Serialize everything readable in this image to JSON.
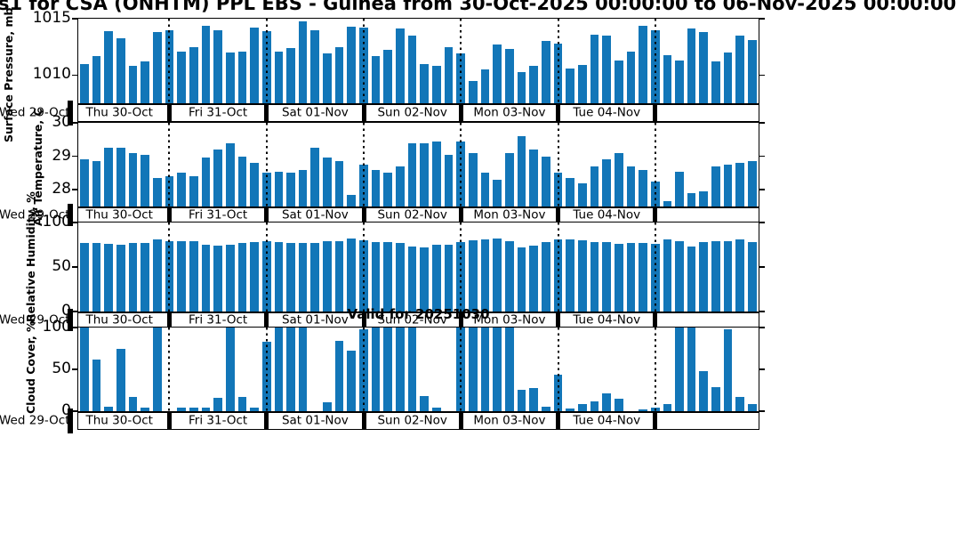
{
  "title": "s1 for CSA (ONHTM) PPL EBS  - Guinea from 30-Oct-2025 00:00:00 to 06-Nov-2025 00:00:00",
  "valid_label": "Valid for 20251030",
  "colors": {
    "bar": "#1276b8",
    "axis": "#000000"
  },
  "x_axis": {
    "left_date_label": "Wed 29-Oct",
    "day_labels": [
      "Thu 30-Oct",
      "Fri 31-Oct",
      "Sat 01-Nov",
      "Sun 02-Nov",
      "Mon 03-Nov",
      "Tue 04-Nov"
    ],
    "bars_per_day": 8
  },
  "chart_data": [
    {
      "type": "bar",
      "axis_label": "Surface Pressure, mb",
      "ylim": [
        1007.5,
        1015
      ],
      "yticks": [
        1010,
        1015
      ],
      "values": [
        1011.0,
        1011.7,
        1013.9,
        1013.3,
        1010.8,
        1011.2,
        1013.8,
        1014.0,
        1012.1,
        1012.5,
        1014.4,
        1014.0,
        1012.0,
        1012.1,
        1014.2,
        1013.9,
        1012.1,
        1012.4,
        1014.8,
        1014.0,
        1011.9,
        1012.5,
        1014.3,
        1014.2,
        1011.7,
        1012.2,
        1014.1,
        1013.5,
        1011.0,
        1010.8,
        1012.5,
        1011.9,
        1009.5,
        1010.5,
        1012.7,
        1012.3,
        1010.3,
        1010.8,
        1013.0,
        1012.8,
        1010.6,
        1010.9,
        1013.6,
        1013.5,
        1011.3,
        1012.1,
        1014.4,
        1014.0,
        1011.8,
        1011.3,
        1014.1,
        1013.8,
        1011.2,
        1012.0,
        1013.5,
        1013.1
      ]
    },
    {
      "type": "bar",
      "axis_label": "Air Temperature, C",
      "ylim": [
        27.5,
        30
      ],
      "yticks": [
        28,
        29,
        30
      ],
      "values": [
        28.9,
        28.85,
        29.25,
        29.25,
        29.1,
        29.05,
        28.35,
        28.4,
        28.5,
        28.4,
        28.95,
        29.2,
        29.4,
        29.0,
        28.8,
        28.5,
        28.55,
        28.5,
        28.6,
        29.25,
        28.95,
        28.85,
        27.85,
        28.75,
        28.6,
        28.5,
        28.7,
        29.4,
        29.4,
        29.45,
        29.05,
        29.45,
        29.1,
        28.5,
        28.3,
        29.1,
        29.6,
        29.2,
        29.0,
        28.5,
        28.35,
        28.2,
        28.7,
        28.9,
        29.1,
        28.7,
        28.6,
        28.25,
        27.65,
        28.55,
        27.9,
        27.95,
        28.7,
        28.75,
        28.8,
        28.85
      ]
    },
    {
      "type": "bar",
      "axis_label": "Relative Humidity, %",
      "ylim": [
        0,
        100
      ],
      "yticks": [
        0,
        50,
        100
      ],
      "values": [
        77,
        77,
        76,
        75,
        77,
        77,
        81,
        79,
        79,
        79,
        75,
        74,
        75,
        77,
        78,
        79,
        78,
        77,
        77,
        77,
        79,
        79,
        82,
        80,
        78,
        78,
        77,
        73,
        72,
        75,
        75,
        78,
        80,
        81,
        82,
        79,
        72,
        74,
        78,
        81,
        81,
        80,
        78,
        78,
        76,
        77,
        77,
        76,
        81,
        79,
        73,
        78,
        79,
        79,
        81,
        78
      ]
    },
    {
      "type": "bar",
      "axis_label": "Cloud Cover, %",
      "ylim": [
        0,
        100
      ],
      "yticks": [
        0,
        50,
        100
      ],
      "values": [
        100,
        62,
        5,
        75,
        17,
        4,
        100,
        0,
        4,
        4,
        4,
        16,
        100,
        17,
        4,
        83,
        100,
        100,
        100,
        0,
        11,
        84,
        72,
        98,
        100,
        100,
        100,
        100,
        18,
        4,
        0,
        100,
        100,
        100,
        100,
        100,
        26,
        28,
        5,
        44,
        3,
        8,
        12,
        21,
        15,
        0,
        2,
        4,
        8,
        100,
        100,
        48,
        29,
        98,
        17,
        8
      ]
    }
  ]
}
